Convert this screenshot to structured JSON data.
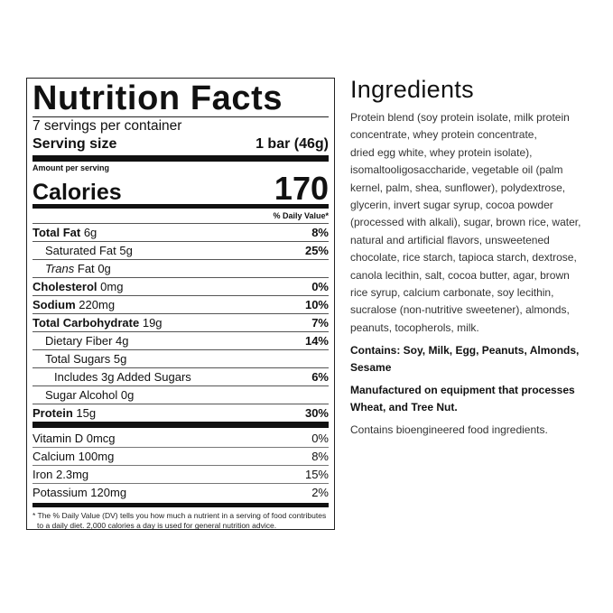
{
  "nutrition": {
    "title": "Nutrition Facts",
    "servings": "7 servings per container",
    "serving_size_label": "Serving size",
    "serving_size_value": "1 bar (46g)",
    "amount_per_serving": "Amount per serving",
    "calories_label": "Calories",
    "calories_value": "170",
    "daily_value_header": "% Daily Value*",
    "nutrients": [
      {
        "name": "Total Fat",
        "amount": "6g",
        "dv": "8%"
      },
      {
        "name": "Saturated Fat",
        "amount": "5g",
        "dv": "25%"
      },
      {
        "name": "Trans",
        "name2": "Fat",
        "amount": "0g",
        "dv": ""
      },
      {
        "name": "Cholesterol",
        "amount": "0mg",
        "dv": "0%"
      },
      {
        "name": "Sodium",
        "amount": "220mg",
        "dv": "10%"
      },
      {
        "name": "Total Carbohydrate",
        "amount": "19g",
        "dv": "7%"
      },
      {
        "name": "Dietary Fiber",
        "amount": "4g",
        "dv": "14%"
      },
      {
        "name": "Total Sugars",
        "amount": "5g",
        "dv": ""
      },
      {
        "name": "Includes 3g Added Sugars",
        "amount": "",
        "dv": "6%"
      },
      {
        "name": "Sugar Alcohol",
        "amount": "0g",
        "dv": ""
      },
      {
        "name": "Protein",
        "amount": "15g",
        "dv": "30%"
      }
    ],
    "vitamins": [
      {
        "name": "Vitamin D 0mcg",
        "dv": "0%"
      },
      {
        "name": "Calcium 100mg",
        "dv": "8%"
      },
      {
        "name": "Iron 2.3mg",
        "dv": "15%"
      },
      {
        "name": "Potassium 120mg",
        "dv": "2%"
      }
    ],
    "footnote": "* The % Daily Value (DV) tells you how much a nutrient in a serving of food contributes to a daily diet. 2,000 calories a day is used for general nutrition advice."
  },
  "ingredients": {
    "title": "Ingredients",
    "lines": [
      "Protein blend (soy protein isolate, milk protein",
      "concentrate, whey protein concentrate,",
      "dried egg white, whey protein isolate),",
      "isomaltooligosaccharide, vegetable oil (palm",
      "kernel, palm, shea, sunflower), polydextrose,",
      "glycerin, invert sugar syrup, cocoa powder",
      "(processed with alkali), sugar, brown rice, water,",
      "natural and artificial flavors, unsweetened",
      "chocolate, rice starch, tapioca starch, dextrose,",
      "canola lecithin, salt, cocoa butter, agar, brown",
      "rice syrup, calcium carbonate, soy lecithin,",
      "sucralose (non-nutritive sweetener), almonds,",
      "peanuts, tocopherols, milk."
    ],
    "contains_lines": [
      "Contains: Soy, Milk, Egg, Peanuts, Almonds,",
      "Sesame"
    ],
    "manufactured_lines": [
      "Manufactured on equipment that processes",
      "Wheat, and Tree Nut."
    ],
    "bioengineered": "Contains bioengineered food ingredients."
  }
}
